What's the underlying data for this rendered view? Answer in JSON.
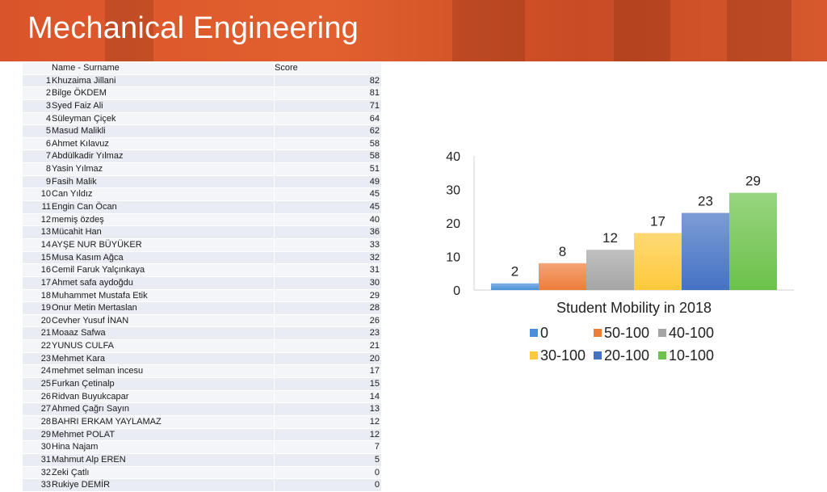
{
  "slide": {
    "title": "Mechanical Engineering",
    "banner_color": "#d9542a"
  },
  "table": {
    "headers": {
      "name": "Name - Surname",
      "score": "Score"
    },
    "rows": [
      {
        "no": "1",
        "name": "Khuzaima Jillani",
        "score": "82"
      },
      {
        "no": "2",
        "name": "Bilge ÖKDEM",
        "score": "81"
      },
      {
        "no": "3",
        "name": "Syed Faiz Ali",
        "score": "71"
      },
      {
        "no": "4",
        "name": "Süleyman Çiçek",
        "score": "64"
      },
      {
        "no": "5",
        "name": "Masud Malikli",
        "score": "62"
      },
      {
        "no": "6",
        "name": "Ahmet Kılavuz",
        "score": "58"
      },
      {
        "no": "7",
        "name": "Abdülkadir Yılmaz",
        "score": "58"
      },
      {
        "no": "8",
        "name": "Yasin Yılmaz",
        "score": "51"
      },
      {
        "no": "9",
        "name": "Fasih Malik",
        "score": "49"
      },
      {
        "no": "10",
        "name": "Can Yıldız",
        "score": "45"
      },
      {
        "no": "11",
        "name": "Engin Can Öcan",
        "score": "45"
      },
      {
        "no": "12",
        "name": "memiş özdeş",
        "score": "40"
      },
      {
        "no": "13",
        "name": "Mücahit Han",
        "score": "36"
      },
      {
        "no": "14",
        "name": "AYŞE NUR BÜYÜKER",
        "score": "33"
      },
      {
        "no": "15",
        "name": "Musa Kasım Ağca",
        "score": "32"
      },
      {
        "no": "16",
        "name": "Cemil Faruk Yalçınkaya",
        "score": "31"
      },
      {
        "no": "17",
        "name": "Ahmet safa aydoğdu",
        "score": "30"
      },
      {
        "no": "18",
        "name": "Muhammet Mustafa Etik",
        "score": "29"
      },
      {
        "no": "19",
        "name": "Onur Metin Mertaslan",
        "score": "28"
      },
      {
        "no": "20",
        "name": "Cevher Yusuf İNAN",
        "score": "26"
      },
      {
        "no": "21",
        "name": "Moaaz Safwa",
        "score": "23"
      },
      {
        "no": "22",
        "name": "YUNUS CULFA",
        "score": "21"
      },
      {
        "no": "23",
        "name": "Mehmet Kara",
        "score": "20"
      },
      {
        "no": "24",
        "name": "mehmet selman incesu",
        "score": "17"
      },
      {
        "no": "25",
        "name": "Furkan Çetinalp",
        "score": "15"
      },
      {
        "no": "26",
        "name": "Ridvan Buyukcapar",
        "score": "14"
      },
      {
        "no": "27",
        "name": "Ahmed Çağrı Sayın",
        "score": "13"
      },
      {
        "no": "28",
        "name": "BAHRI ERKAM YAYLAMAZ",
        "score": "12"
      },
      {
        "no": "29",
        "name": "Mehmet POLAT",
        "score": "12"
      },
      {
        "no": "30",
        "name": "Hina Najam",
        "score": "7"
      },
      {
        "no": "31",
        "name": "Mahmut Alp EREN",
        "score": "5"
      },
      {
        "no": "32",
        "name": "Zeki Çatlı",
        "score": "0"
      },
      {
        "no": "33",
        "name": "Rukiye DEMİR",
        "score": "0"
      }
    ]
  },
  "chart_data": {
    "type": "bar",
    "title": "",
    "xlabel": "Student Mobility in 2018",
    "ylabel": "",
    "ylim": [
      0,
      40
    ],
    "yticks": [
      "0",
      "10",
      "20",
      "30",
      "40"
    ],
    "grid": false,
    "legend_position": "bottom",
    "series": [
      {
        "name": "0",
        "value": 2,
        "label": "2",
        "color": "#4a90d9"
      },
      {
        "name": "50-100",
        "value": 8,
        "label": "8",
        "color": "#ee7d3a"
      },
      {
        "name": "40-100",
        "value": 12,
        "label": "12",
        "color": "#a5a5a5"
      },
      {
        "name": "30-100",
        "value": 17,
        "label": "17",
        "color": "#fec93b"
      },
      {
        "name": "20-100",
        "value": 23,
        "label": "23",
        "color": "#4472c4"
      },
      {
        "name": "10-100",
        "value": 29,
        "label": "29",
        "color": "#6cc24a"
      }
    ]
  }
}
